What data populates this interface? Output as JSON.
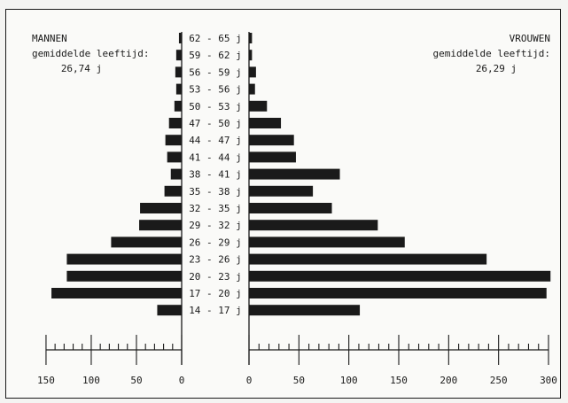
{
  "chart_data": {
    "type": "bar",
    "orientation": "horizontal-population-pyramid",
    "categories": [
      "62 - 65  j",
      "59 - 62  j",
      "56 - 59  j",
      "53 - 56  j",
      "50 - 53  j",
      "47 - 50  j",
      "44 - 47  j",
      "41 - 44  j",
      "38 - 41  j",
      "35 - 38  j",
      "32 - 35  j",
      "29 - 32  j",
      "26 - 29  j",
      "23 - 26  j",
      "20 - 23  j",
      "17 - 20  j",
      "14 - 17  j"
    ],
    "series": [
      {
        "name": "MANNEN",
        "values": [
          3,
          6,
          7,
          6,
          8,
          14,
          18,
          16,
          12,
          19,
          46,
          47,
          78,
          127,
          127,
          144,
          27
        ]
      },
      {
        "name": "VROUWEN",
        "values": [
          3,
          3,
          7,
          6,
          18,
          32,
          45,
          47,
          91,
          64,
          83,
          129,
          156,
          238,
          302,
          298,
          111
        ]
      }
    ],
    "left_label": {
      "title": "MANNEN",
      "subtitle": "gemiddelde  leeftijd:",
      "value": "26,74  j"
    },
    "right_label": {
      "title": "VROUWEN",
      "subtitle": "gemiddelde  leeftijd:",
      "value": "26,29  j"
    },
    "left_axis": {
      "ticks": [
        150,
        100,
        50,
        0
      ],
      "range": [
        0,
        150
      ]
    },
    "right_axis": {
      "ticks": [
        0,
        50,
        100,
        150,
        200,
        250,
        300
      ],
      "range": [
        0,
        300
      ]
    },
    "bar_color": "#1a1a1a"
  }
}
